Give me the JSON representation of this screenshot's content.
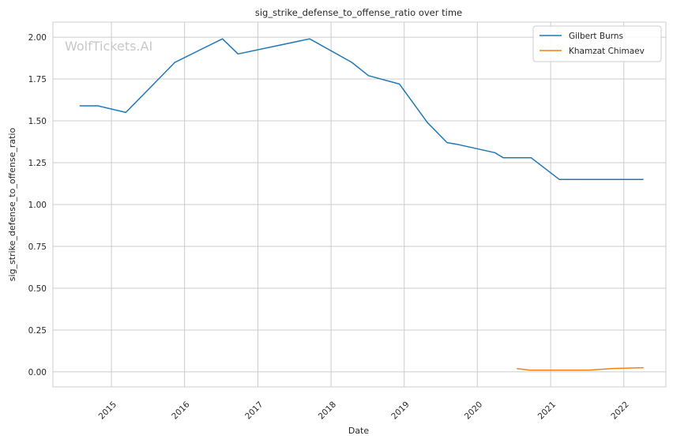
{
  "chart_data": {
    "type": "line",
    "title": "sig_strike_defense_to_offense_ratio over time",
    "xlabel": "Date",
    "ylabel": "sig_strike_defense_to_offense_ratio",
    "x_ticks": [
      "2015",
      "2016",
      "2017",
      "2018",
      "2019",
      "2020",
      "2021",
      "2022"
    ],
    "y_ticks": [
      "0.00",
      "0.25",
      "0.50",
      "0.75",
      "1.00",
      "1.25",
      "1.50",
      "1.75",
      "2.00"
    ],
    "ylim": [
      -0.09,
      2.09
    ],
    "xlim": [
      "2014-03-15",
      "2022-07-30"
    ],
    "grid": true,
    "legend_position": "top-right",
    "watermark": "WolfTickets.AI",
    "series": [
      {
        "name": "Gilbert Burns",
        "color": "#1f77b4",
        "points": [
          [
            "2014-07-26",
            1.59
          ],
          [
            "2014-10-25",
            1.59
          ],
          [
            "2015-03-14",
            1.55
          ],
          [
            "2015-11-14",
            1.85
          ],
          [
            "2016-07-08",
            1.99
          ],
          [
            "2016-09-24",
            1.9
          ],
          [
            "2017-09-16",
            1.99
          ],
          [
            "2018-04-14",
            1.85
          ],
          [
            "2018-07-07",
            1.77
          ],
          [
            "2018-12-08",
            1.72
          ],
          [
            "2019-04-27",
            1.49
          ],
          [
            "2019-08-03",
            1.37
          ],
          [
            "2019-09-21",
            1.36
          ],
          [
            "2020-03-28",
            1.31
          ],
          [
            "2020-05-09",
            1.28
          ],
          [
            "2020-08-15",
            1.28
          ],
          [
            "2020-09-25",
            1.28
          ],
          [
            "2021-02-13",
            1.15
          ],
          [
            "2021-07-10",
            1.15
          ],
          [
            "2022-04-09",
            1.15
          ]
        ]
      },
      {
        "name": "Khamzat Chimaev",
        "color": "#ff7f0e",
        "points": [
          [
            "2020-07-16",
            0.02
          ],
          [
            "2020-09-19",
            0.01
          ],
          [
            "2021-07-10",
            0.01
          ],
          [
            "2021-10-30",
            0.02
          ],
          [
            "2022-04-09",
            0.025
          ]
        ]
      }
    ]
  }
}
